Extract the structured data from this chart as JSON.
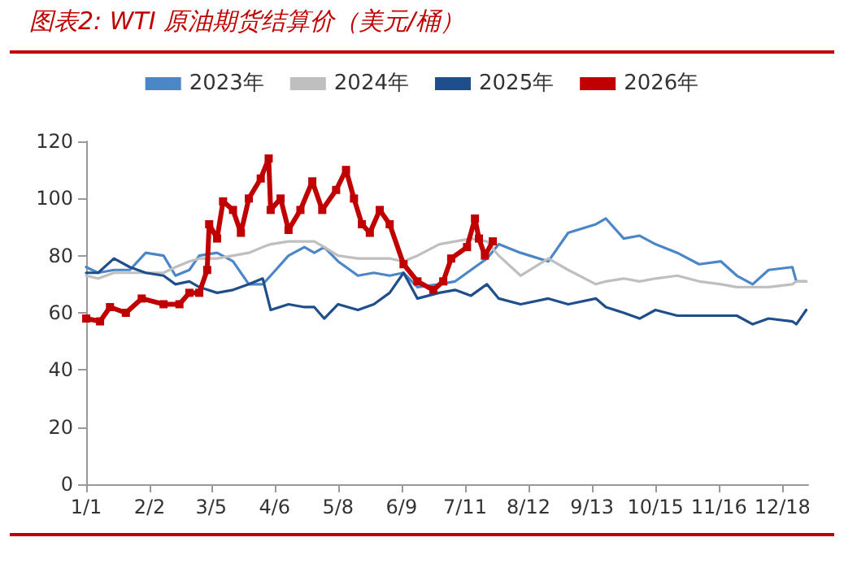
{
  "chart_data": {
    "type": "line",
    "title": "图表2:  WTI 原油期货结算价（美元/桶）",
    "x": [
      "--01-01",
      "--01-07",
      "--01-15",
      "--01-23",
      "--01-31",
      "--02-09",
      "--02-15",
      "--02-22",
      "--02-27",
      "--03-08",
      "--03-16",
      "--03-24",
      "--03-31",
      "--04-04",
      "--04-13",
      "--04-21",
      "--04-26",
      "--05-01",
      "--05-08",
      "--05-18",
      "--05-26",
      "--06-03",
      "--06-10",
      "--06-17",
      "--06-28",
      "--07-06",
      "--07-14",
      "--07-22",
      "--07-28",
      "--08-08",
      "--08-22",
      "--09-01",
      "--09-15",
      "--09-20",
      "--09-29",
      "--10-07",
      "--10-15",
      "--10-26",
      "--11-06",
      "--11-17",
      "--11-25",
      "--12-03",
      "--12-11",
      "--12-23",
      "--12-25",
      "--12-30"
    ],
    "series": [
      {
        "name": "2023年",
        "color": "#4a86c8",
        "marker": "none",
        "values": [
          76,
          74,
          75,
          75,
          81,
          80,
          73,
          75,
          80,
          81,
          78,
          70,
          70,
          73,
          80,
          83,
          81,
          83,
          78,
          73,
          74,
          73,
          74,
          69,
          70,
          71,
          75,
          79,
          84,
          81,
          78,
          88,
          91,
          93,
          86,
          87,
          84,
          81,
          77,
          78,
          73,
          70,
          75,
          76,
          71,
          71
        ]
      },
      {
        "name": "2024年",
        "color": "#bfbfbf",
        "marker": "none",
        "values": [
          73,
          72,
          74,
          74,
          74,
          74,
          76,
          78,
          79,
          79,
          80,
          81,
          83,
          84,
          85,
          85,
          85,
          83,
          80,
          79,
          79,
          79,
          78,
          80,
          84,
          85,
          86,
          85,
          80,
          73,
          79,
          75,
          70,
          71,
          72,
          71,
          72,
          73,
          71,
          70,
          69,
          69,
          69,
          70,
          71,
          71
        ]
      },
      {
        "name": "2025年",
        "color": "#1f4e8c",
        "marker": "none",
        "values": [
          74,
          74,
          79,
          76,
          74,
          73,
          70,
          71,
          69,
          67,
          68,
          70,
          72,
          61,
          63,
          62,
          62,
          58,
          63,
          61,
          63,
          67,
          74,
          65,
          67,
          68,
          66,
          70,
          65,
          63,
          65,
          63,
          65,
          62,
          60,
          58,
          61,
          59,
          59,
          59,
          59,
          56,
          58,
          57,
          56,
          61
        ]
      },
      {
        "name": "2026年",
        "color": "#c00000",
        "marker": "square",
        "x": [
          "--01-01",
          "--01-08",
          "--01-13",
          "--01-21",
          "--01-29",
          "--02-09",
          "--02-17",
          "--02-22",
          "--02-27",
          "--03-03",
          "--03-04",
          "--03-08",
          "--03-11",
          "--03-16",
          "--03-20",
          "--03-24",
          "--03-30",
          "--04-03",
          "--04-04",
          "--04-09",
          "--04-13",
          "--04-19",
          "--04-25",
          "--04-30",
          "--05-07",
          "--05-12",
          "--05-16",
          "--05-20",
          "--05-24",
          "--05-29",
          "--06-03",
          "--06-10",
          "--06-17",
          "--06-25",
          "--06-30",
          "--07-04",
          "--07-12",
          "--07-16",
          "--07-18",
          "--07-21",
          "--07-25"
        ],
        "values": [
          58,
          57,
          62,
          60,
          65,
          63,
          63,
          67,
          67,
          75,
          91,
          86,
          99,
          96,
          88,
          100,
          107,
          114,
          96,
          100,
          89,
          96,
          106,
          96,
          103,
          110,
          100,
          91,
          88,
          96,
          91,
          77,
          71,
          68,
          71,
          79,
          83,
          93,
          86,
          80,
          85
        ]
      }
    ],
    "xlim": [
      "--01-01",
      "--12-31"
    ],
    "xticks": [
      {
        "value": "--01-01",
        "label": "1/1"
      },
      {
        "value": "--02-02",
        "label": "2/2"
      },
      {
        "value": "--03-05",
        "label": "3/5"
      },
      {
        "value": "--04-06",
        "label": "4/6"
      },
      {
        "value": "--05-08",
        "label": "5/8"
      },
      {
        "value": "--06-09",
        "label": "6/9"
      },
      {
        "value": "--07-11",
        "label": "7/11"
      },
      {
        "value": "--08-12",
        "label": "8/12"
      },
      {
        "value": "--09-13",
        "label": "9/13"
      },
      {
        "value": "--10-15",
        "label": "10/15"
      },
      {
        "value": "--11-16",
        "label": "11/16"
      },
      {
        "value": "--12-18",
        "label": "12/18"
      }
    ],
    "ylim": [
      0,
      120
    ],
    "yticks": [
      0,
      20,
      40,
      60,
      80,
      100,
      120
    ],
    "grid": false,
    "legend": "top",
    "line_style": "solid"
  }
}
